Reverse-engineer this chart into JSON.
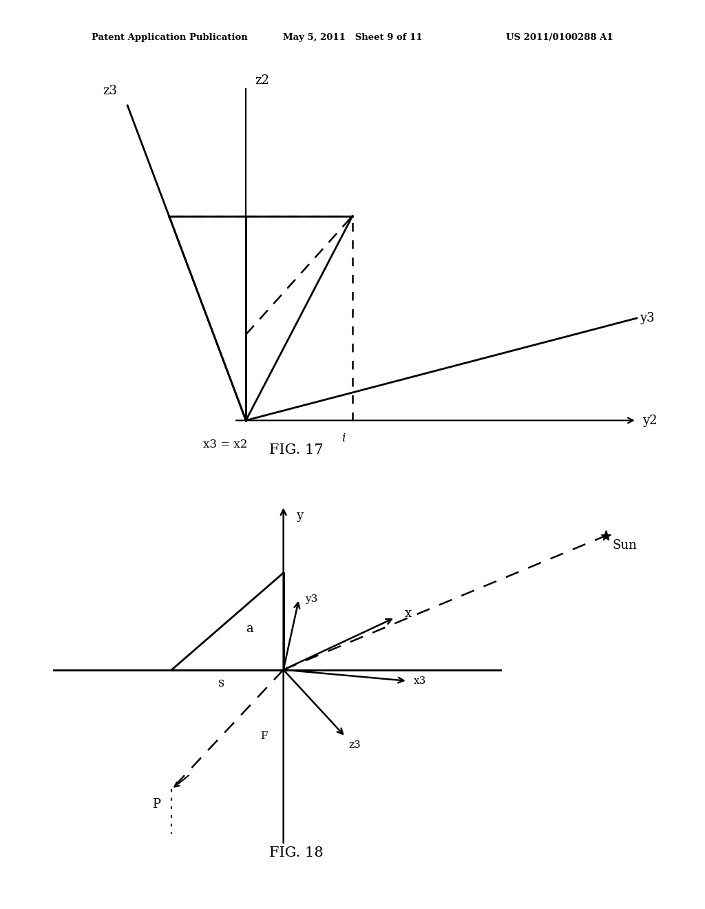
{
  "header_left": "Patent Application Publication",
  "header_mid": "May 5, 2011   Sheet 9 of 11",
  "header_right": "US 2011/0100288 A1",
  "fig17_caption": "FIG. 17",
  "fig18_caption": "FIG. 18",
  "bg_color": "#ffffff",
  "line_color": "#000000"
}
